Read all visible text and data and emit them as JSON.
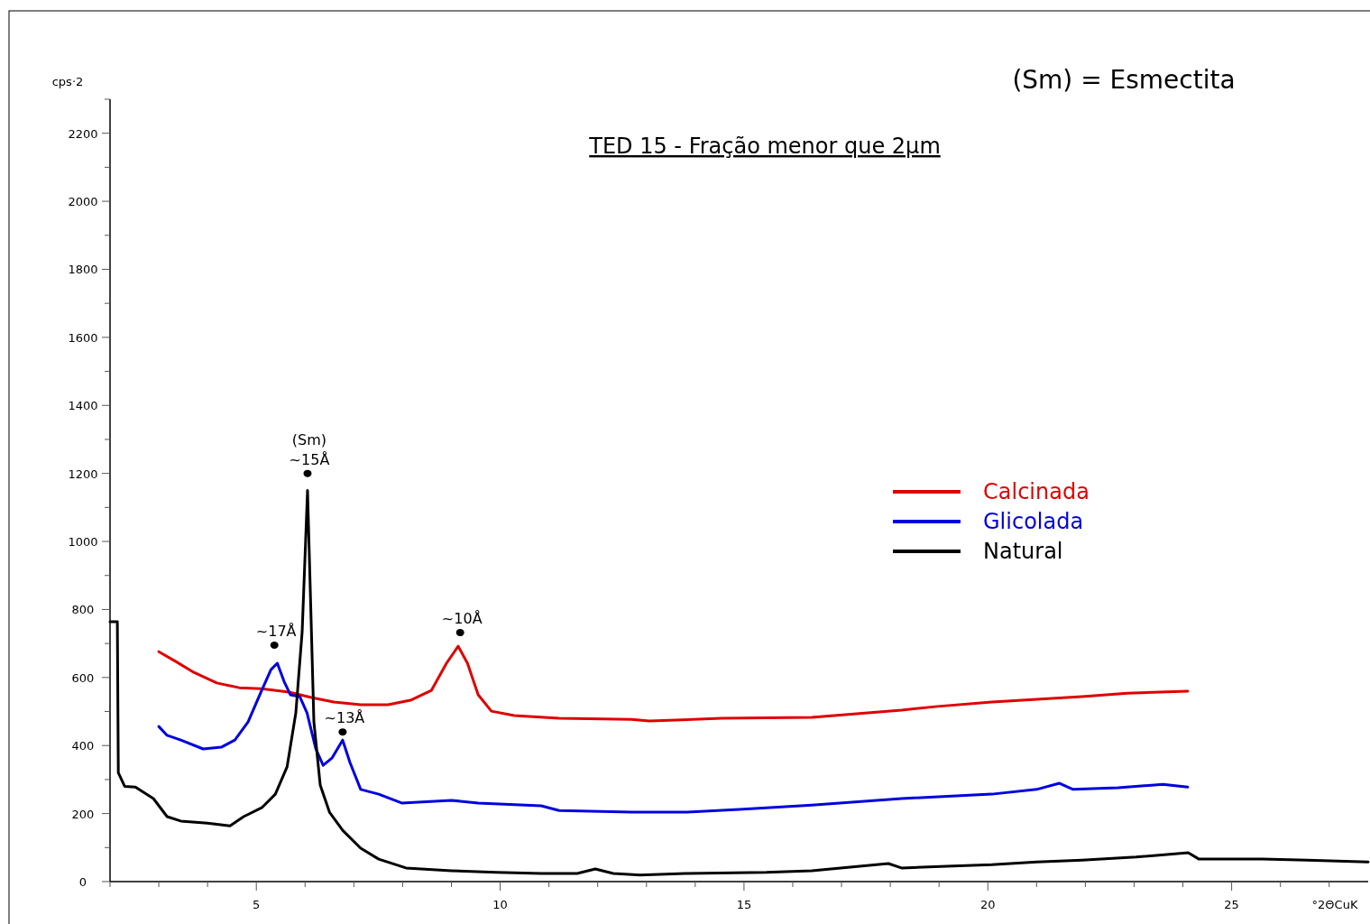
{
  "chart_data": {
    "type": "line",
    "title": "TED 15 - Fração menor que 2μm",
    "xlabel": "°2ΘCuK",
    "ylabel": "cps·2",
    "xlim": [
      2,
      27.8
    ],
    "ylim": [
      0,
      2300
    ],
    "xticks": [
      {
        "value": 2,
        "label": null
      },
      {
        "value": 3,
        "label": null
      },
      {
        "value": 4,
        "label": null
      },
      5,
      {
        "value": 6,
        "label": null
      },
      {
        "value": 7,
        "label": null
      },
      {
        "value": 8,
        "label": null
      },
      {
        "value": 9,
        "label": null
      },
      10,
      {
        "value": 11,
        "label": null
      },
      {
        "value": 12,
        "label": null
      },
      {
        "value": 13,
        "label": null
      },
      {
        "value": 14,
        "label": null
      },
      15,
      {
        "value": 16,
        "label": null
      },
      {
        "value": 17,
        "label": null
      },
      {
        "value": 18,
        "label": null
      },
      {
        "value": 19,
        "label": null
      },
      20,
      {
        "value": 21,
        "label": null
      },
      {
        "value": 22,
        "label": null
      },
      {
        "value": 23,
        "label": null
      },
      {
        "value": 24,
        "label": null
      },
      25,
      {
        "value": 26,
        "label": null
      },
      {
        "value": 27,
        "label": null
      }
    ],
    "yticks": [
      0,
      {
        "value": 100,
        "label": null
      },
      200,
      {
        "value": 300,
        "label": null
      },
      400,
      {
        "value": 500,
        "label": null
      },
      600,
      {
        "value": 700,
        "label": null
      },
      800,
      {
        "value": 900,
        "label": null
      },
      1000,
      {
        "value": 1100,
        "label": null
      },
      1200,
      {
        "value": 1300,
        "label": null
      },
      1400,
      {
        "value": 1500,
        "label": null
      },
      1600,
      {
        "value": 1700,
        "label": null
      },
      1800,
      {
        "value": 1900,
        "label": null
      },
      2000,
      {
        "value": 2100,
        "label": null
      },
      2200,
      {
        "value": 2300,
        "label": null
      }
    ],
    "grid": false,
    "legend": "right",
    "marker": "none",
    "line_style": "solid",
    "series": [
      {
        "name": "Calcinada",
        "color": "#e00000",
        "x": [
          3.0,
          3.35,
          3.72,
          4.19,
          4.65,
          5.11,
          5.67,
          6.13,
          6.59,
          7.14,
          7.7,
          8.16,
          8.59,
          8.9,
          9.14,
          9.33,
          9.55,
          9.82,
          10.29,
          11.21,
          12.69,
          13.06,
          14.54,
          16.39,
          18.23,
          18.97,
          20.08,
          21.93,
          22.86,
          24.1
        ],
        "values": [
          676,
          647,
          615,
          584,
          570,
          567,
          557,
          541,
          528,
          520,
          520,
          533,
          562,
          642,
          692,
          642,
          549,
          501,
          488,
          480,
          477,
          472,
          480,
          483,
          504,
          515,
          528,
          544,
          554,
          560
        ]
      },
      {
        "name": "Glicolada",
        "color": "#0000e0",
        "x": [
          3.0,
          3.17,
          3.45,
          3.91,
          4.28,
          4.56,
          4.83,
          5.11,
          5.3,
          5.43,
          5.57,
          5.7,
          5.89,
          6.04,
          6.22,
          6.37,
          6.55,
          6.77,
          6.92,
          7.14,
          7.51,
          7.98,
          9.0,
          9.55,
          10.84,
          11.21,
          12.69,
          13.8,
          14.91,
          16.39,
          18.23,
          20.08,
          21.0,
          21.47,
          21.75,
          22.67,
          23.59,
          24.1
        ],
        "values": [
          456,
          430,
          416,
          390,
          395,
          416,
          469,
          562,
          623,
          642,
          588,
          549,
          544,
          496,
          390,
          342,
          363,
          416,
          350,
          271,
          257,
          231,
          239,
          231,
          223,
          209,
          204,
          204,
          212,
          225,
          244,
          257,
          271,
          289,
          271,
          276,
          286,
          278
        ]
      },
      {
        "name": "Natural",
        "color": "#000000",
        "x": [
          2.0,
          2.15,
          2.17,
          2.3,
          2.52,
          2.89,
          3.17,
          3.45,
          4.0,
          4.46,
          4.74,
          5.11,
          5.39,
          5.63,
          5.81,
          5.94,
          6.05,
          6.13,
          6.18,
          6.31,
          6.5,
          6.77,
          7.14,
          7.51,
          8.07,
          9.0,
          9.92,
          10.84,
          11.58,
          11.95,
          12.32,
          12.87,
          13.8,
          15.46,
          16.39,
          17.96,
          18.23,
          19.16,
          20.08,
          21.0,
          21.93,
          23.04,
          24.11,
          24.33,
          25.63,
          26.55,
          27.8
        ],
        "values": [
          764,
          764,
          320,
          280,
          278,
          244,
          191,
          178,
          172,
          164,
          191,
          217,
          257,
          337,
          496,
          735,
          1150,
          735,
          470,
          284,
          204,
          151,
          98,
          66,
          40,
          32,
          27,
          24,
          24,
          37,
          24,
          19,
          24,
          27,
          32,
          53,
          40,
          45,
          50,
          58,
          63,
          72,
          85,
          66,
          66,
          63,
          58
        ]
      }
    ],
    "annotations": [
      {
        "text": "(Sm)\n~15Å",
        "x": 6.05,
        "y": 1200
      },
      {
        "text": "~17Å",
        "x": 5.37,
        "y": 695
      },
      {
        "text": "~13Å",
        "x": 6.77,
        "y": 440
      },
      {
        "text": "~10Å",
        "x": 9.18,
        "y": 732
      },
      "(Sm) = Esmectita"
    ]
  }
}
